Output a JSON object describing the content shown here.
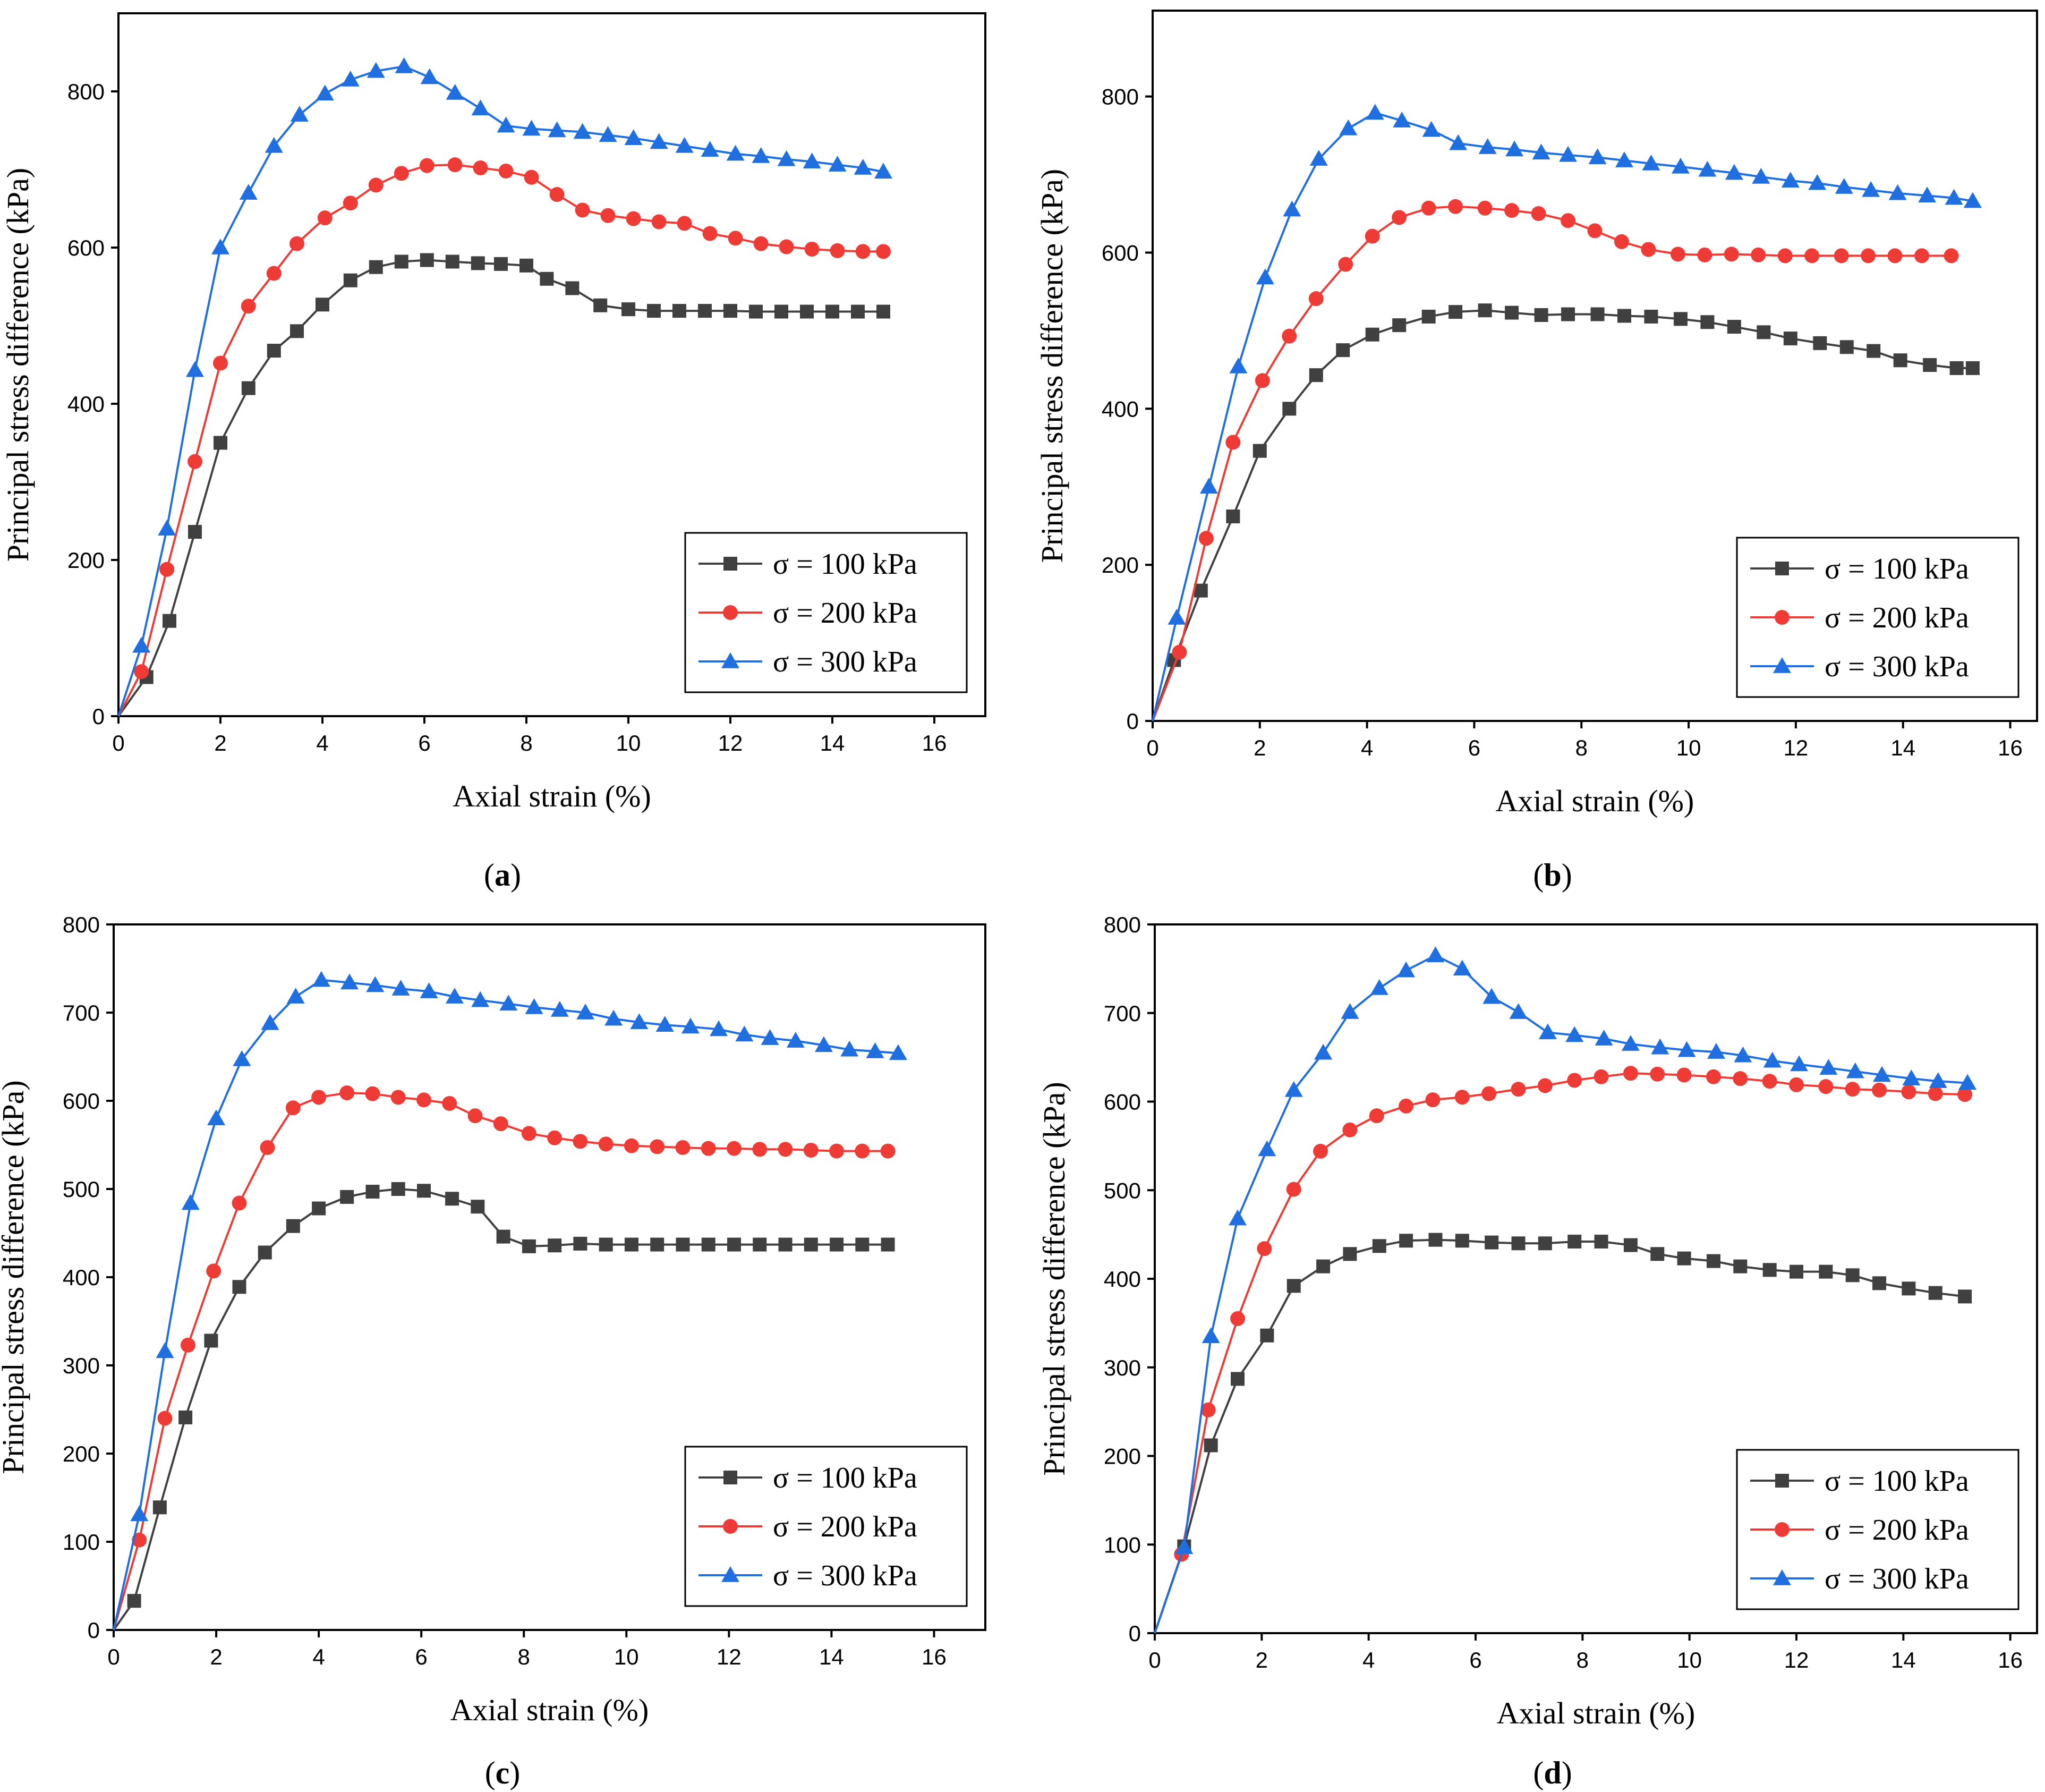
{
  "figure": {
    "panels": [
      "a",
      "b",
      "c",
      "d"
    ]
  },
  "chart_data": [
    {
      "panel": "a",
      "type": "line",
      "xlabel": "Axial strain (%)",
      "ylabel": "Principal stress difference (kPa)",
      "xlim": [
        0,
        17
      ],
      "ylim": [
        0,
        900
      ],
      "xticks": [
        0,
        2,
        4,
        6,
        8,
        10,
        12,
        14,
        16
      ],
      "yticks": [
        0,
        200,
        400,
        600,
        800
      ],
      "legend_position": "bottom-right",
      "series": [
        {
          "name": "σ = 100 kPa",
          "color": "#404040",
          "marker": "square",
          "x": [
            0,
            0.55,
            1.0,
            1.5,
            2.0,
            2.55,
            3.05,
            3.5,
            4.0,
            4.55,
            5.05,
            5.55,
            6.05,
            6.55,
            7.05,
            7.5,
            8.0,
            8.4,
            8.9,
            9.45,
            10.0,
            10.5,
            11.0,
            11.5,
            12.0,
            12.5,
            13.0,
            13.5,
            14.0,
            14.5,
            15.0
          ],
          "y": [
            0,
            50,
            122,
            236,
            350,
            420,
            468,
            493,
            527,
            558,
            575,
            582,
            584,
            582,
            580,
            579,
            577,
            560,
            548,
            526,
            521,
            519,
            519,
            519,
            519,
            518,
            518,
            518,
            518,
            518,
            518
          ]
        },
        {
          "name": "σ = 200 kPa",
          "color": "#ef3b36",
          "marker": "circle",
          "x": [
            0,
            0.45,
            0.95,
            1.5,
            2.0,
            2.55,
            3.05,
            3.5,
            4.05,
            4.55,
            5.05,
            5.55,
            6.05,
            6.6,
            7.1,
            7.6,
            8.1,
            8.6,
            9.1,
            9.6,
            10.1,
            10.6,
            11.1,
            11.6,
            12.1,
            12.6,
            13.1,
            13.6,
            14.1,
            14.6,
            15.0
          ],
          "y": [
            0,
            57,
            188,
            326,
            452,
            525,
            567,
            605,
            638,
            657,
            680,
            695,
            705,
            706,
            702,
            698,
            690,
            668,
            648,
            641,
            637,
            633,
            631,
            618,
            612,
            605,
            601,
            598,
            596,
            595,
            595
          ]
        },
        {
          "name": "σ = 300 kPa",
          "color": "#1f6fe0",
          "marker": "triangle",
          "x": [
            0,
            0.45,
            0.95,
            1.5,
            2.0,
            2.55,
            3.05,
            3.55,
            4.05,
            4.55,
            5.05,
            5.6,
            6.1,
            6.6,
            7.1,
            7.6,
            8.1,
            8.6,
            9.1,
            9.6,
            10.1,
            10.6,
            11.1,
            11.6,
            12.1,
            12.6,
            13.1,
            13.6,
            14.1,
            14.6,
            15.0
          ],
          "y": [
            0,
            90,
            240,
            443,
            600,
            670,
            730,
            770,
            797,
            815,
            826,
            832,
            818,
            798,
            778,
            756,
            752,
            750,
            748,
            744,
            740,
            735,
            730,
            725,
            720,
            717,
            713,
            710,
            706,
            702,
            697
          ]
        }
      ]
    },
    {
      "panel": "b",
      "type": "line",
      "xlabel": "Axial strain (%)",
      "ylabel": "Principal stress difference (kPa)",
      "xlim": [
        0,
        16.5
      ],
      "ylim": [
        0,
        910
      ],
      "xticks": [
        0,
        2,
        4,
        6,
        8,
        10,
        12,
        14,
        16
      ],
      "yticks": [
        0,
        200,
        400,
        600,
        800
      ],
      "legend_position": "bottom-right",
      "series": [
        {
          "name": "σ = 100 kPa",
          "color": "#404040",
          "marker": "square",
          "x": [
            0,
            0.4,
            0.9,
            1.5,
            2.0,
            2.55,
            3.05,
            3.55,
            4.1,
            4.6,
            5.15,
            5.65,
            6.2,
            6.7,
            7.25,
            7.75,
            8.3,
            8.8,
            9.3,
            9.85,
            10.35,
            10.85,
            11.4,
            11.9,
            12.45,
            12.95,
            13.45,
            13.95,
            14.5,
            15.0,
            15.3
          ],
          "y": [
            0,
            78,
            167,
            262,
            346,
            400,
            443,
            475,
            495,
            507,
            518,
            524,
            526,
            523,
            520,
            521,
            521,
            519,
            518,
            515,
            511,
            505,
            498,
            490,
            484,
            479,
            474,
            462,
            456,
            452,
            452
          ]
        },
        {
          "name": "σ = 200 kPa",
          "color": "#ef3b36",
          "marker": "circle",
          "x": [
            0,
            0.5,
            1.0,
            1.5,
            2.05,
            2.55,
            3.05,
            3.6,
            4.1,
            4.6,
            5.15,
            5.65,
            6.2,
            6.7,
            7.2,
            7.75,
            8.25,
            8.75,
            9.25,
            9.8,
            10.3,
            10.8,
            11.3,
            11.8,
            12.3,
            12.85,
            13.35,
            13.85,
            14.35,
            14.9
          ],
          "y": [
            0,
            88,
            234,
            357,
            436,
            493,
            541,
            585,
            621,
            645,
            657,
            659,
            657,
            654,
            650,
            641,
            628,
            614,
            604,
            598,
            597,
            598,
            597,
            596,
            596,
            596,
            596,
            596,
            596,
            596
          ]
        },
        {
          "name": "σ = 300 kPa",
          "color": "#1f6fe0",
          "marker": "triangle",
          "x": [
            0,
            0.45,
            1.05,
            1.6,
            2.1,
            2.6,
            3.1,
            3.65,
            4.15,
            4.65,
            5.2,
            5.7,
            6.25,
            6.75,
            7.25,
            7.75,
            8.3,
            8.8,
            9.3,
            9.85,
            10.35,
            10.85,
            11.35,
            11.9,
            12.4,
            12.9,
            13.4,
            13.9,
            14.45,
            14.95,
            15.3
          ],
          "y": [
            0,
            132,
            300,
            454,
            568,
            655,
            720,
            759,
            779,
            769,
            757,
            740,
            735,
            732,
            728,
            725,
            722,
            718,
            714,
            710,
            706,
            702,
            697,
            692,
            689,
            684,
            680,
            676,
            673,
            670,
            666
          ]
        }
      ]
    },
    {
      "panel": "c",
      "type": "line",
      "xlabel": "Axial strain (%)",
      "ylabel": "Principal stress difference (kPa)",
      "xlim": [
        0,
        17
      ],
      "ylim": [
        0,
        800
      ],
      "xticks": [
        0,
        2,
        4,
        6,
        8,
        10,
        12,
        14,
        16
      ],
      "yticks": [
        0,
        100,
        200,
        300,
        400,
        500,
        600,
        700,
        800
      ],
      "legend_position": "bottom-right",
      "series": [
        {
          "name": "σ = 100 kPa",
          "color": "#404040",
          "marker": "square",
          "x": [
            0,
            0.4,
            0.9,
            1.4,
            1.9,
            2.45,
            2.95,
            3.5,
            4.0,
            4.55,
            5.05,
            5.55,
            6.05,
            6.6,
            7.1,
            7.6,
            8.1,
            8.6,
            9.1,
            9.6,
            10.1,
            10.6,
            11.1,
            11.6,
            12.1,
            12.6,
            13.1,
            13.6,
            14.1,
            14.6,
            15.1
          ],
          "y": [
            0,
            33,
            139,
            241,
            328,
            389,
            428,
            458,
            478,
            491,
            497,
            500,
            498,
            489,
            480,
            446,
            435,
            436,
            438,
            437,
            437,
            437,
            437,
            437,
            437,
            437,
            437,
            437,
            437,
            437,
            437
          ]
        },
        {
          "name": "σ = 200 kPa",
          "color": "#ef3b36",
          "marker": "circle",
          "x": [
            0,
            0.5,
            1.0,
            1.45,
            1.95,
            2.45,
            3.0,
            3.5,
            4.0,
            4.55,
            5.05,
            5.55,
            6.05,
            6.55,
            7.05,
            7.55,
            8.1,
            8.6,
            9.1,
            9.6,
            10.1,
            10.6,
            11.1,
            11.6,
            12.1,
            12.6,
            13.1,
            13.6,
            14.1,
            14.6,
            15.1
          ],
          "y": [
            0,
            102,
            240,
            323,
            407,
            484,
            547,
            592,
            604,
            609,
            608,
            604,
            601,
            597,
            583,
            574,
            563,
            558,
            554,
            551,
            549,
            548,
            547,
            546,
            546,
            545,
            545,
            544,
            543,
            543,
            543
          ]
        },
        {
          "name": "σ = 300 kPa",
          "color": "#1f6fe0",
          "marker": "triangle",
          "x": [
            0,
            0.5,
            1.0,
            1.5,
            2.0,
            2.5,
            3.05,
            3.55,
            4.05,
            4.6,
            5.1,
            5.6,
            6.15,
            6.65,
            7.15,
            7.7,
            8.2,
            8.7,
            9.2,
            9.75,
            10.25,
            10.75,
            11.25,
            11.8,
            12.3,
            12.8,
            13.3,
            13.85,
            14.35,
            14.85,
            15.3
          ],
          "y": [
            0,
            131,
            316,
            484,
            580,
            647,
            688,
            718,
            737,
            734,
            731,
            727,
            724,
            718,
            714,
            710,
            706,
            703,
            700,
            693,
            689,
            686,
            684,
            681,
            675,
            671,
            668,
            663,
            658,
            656,
            654
          ]
        }
      ]
    },
    {
      "panel": "d",
      "type": "line",
      "xlabel": "Axial strain (%)",
      "ylabel": "Principal stress difference (kPa)",
      "xlim": [
        0,
        16.5
      ],
      "ylim": [
        0,
        800
      ],
      "xticks": [
        0,
        2,
        4,
        6,
        8,
        10,
        12,
        14,
        16
      ],
      "yticks": [
        0,
        100,
        200,
        300,
        400,
        500,
        600,
        700,
        800
      ],
      "legend_position": "bottom-right",
      "series": [
        {
          "name": "σ = 100 kPa",
          "color": "#404040",
          "marker": "square",
          "x": [
            0,
            0.55,
            1.05,
            1.55,
            2.1,
            2.6,
            3.15,
            3.65,
            4.2,
            4.7,
            5.25,
            5.75,
            6.3,
            6.8,
            7.3,
            7.85,
            8.35,
            8.9,
            9.4,
            9.9,
            10.45,
            10.95,
            11.5,
            12.0,
            12.55,
            13.05,
            13.55,
            14.1,
            14.6,
            15.15
          ],
          "y": [
            0,
            98,
            212,
            287,
            336,
            392,
            414,
            428,
            437,
            443,
            444,
            443,
            441,
            440,
            440,
            442,
            442,
            438,
            428,
            423,
            420,
            414,
            410,
            408,
            408,
            404,
            395,
            389,
            384,
            380
          ]
        },
        {
          "name": "σ = 200 kPa",
          "color": "#ef3b36",
          "marker": "circle",
          "x": [
            0,
            0.5,
            1.0,
            1.55,
            2.05,
            2.6,
            3.1,
            3.65,
            4.15,
            4.7,
            5.2,
            5.75,
            6.25,
            6.8,
            7.3,
            7.85,
            8.35,
            8.9,
            9.4,
            9.9,
            10.45,
            10.95,
            11.5,
            12.0,
            12.55,
            13.05,
            13.55,
            14.1,
            14.6,
            15.15
          ],
          "y": [
            0,
            89,
            252,
            355,
            434,
            501,
            544,
            568,
            584,
            595,
            602,
            605,
            609,
            614,
            618,
            624,
            628,
            632,
            631,
            630,
            628,
            626,
            623,
            619,
            617,
            614,
            613,
            611,
            609,
            608
          ]
        },
        {
          "name": "σ = 300 kPa",
          "color": "#1f6fe0",
          "marker": "triangle",
          "x": [
            0,
            0.55,
            1.05,
            1.55,
            2.1,
            2.6,
            3.15,
            3.65,
            4.2,
            4.7,
            5.25,
            5.75,
            6.3,
            6.8,
            7.35,
            7.85,
            8.4,
            8.9,
            9.45,
            9.95,
            10.5,
            11.0,
            11.55,
            12.05,
            12.6,
            13.1,
            13.6,
            14.15,
            14.65,
            15.2
          ],
          "y": [
            0,
            97,
            335,
            468,
            546,
            613,
            655,
            701,
            728,
            748,
            765,
            750,
            718,
            701,
            678,
            675,
            671,
            665,
            661,
            658,
            656,
            652,
            646,
            642,
            638,
            634,
            630,
            626,
            623,
            621
          ]
        }
      ]
    }
  ]
}
